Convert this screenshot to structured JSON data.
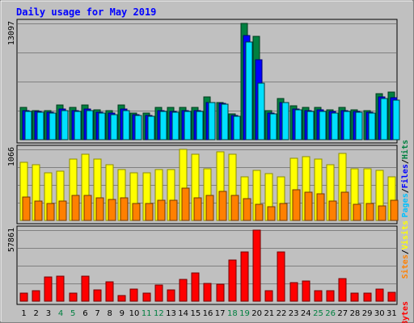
{
  "chart_data": {
    "type": "bar",
    "title": "Daily usage for May 2019",
    "categories": [
      "1",
      "2",
      "3",
      "4",
      "5",
      "6",
      "7",
      "8",
      "9",
      "10",
      "11",
      "12",
      "13",
      "14",
      "15",
      "16",
      "17",
      "18",
      "19",
      "20",
      "21",
      "22",
      "23",
      "24",
      "25",
      "26",
      "27",
      "28",
      "29",
      "30",
      "31"
    ],
    "weekend_days": [
      "4",
      "5",
      "11",
      "12",
      "18",
      "19",
      "25",
      "26"
    ],
    "colors": {
      "hits": "#008040",
      "files": "#0000ff",
      "pages": "#00ffff",
      "visits": "#ffff00",
      "sites": "#ff8000",
      "kbytes": "#ff0000",
      "title": "#0000ff",
      "weekend_label": "#008040",
      "weekday_label": "#000000",
      "background": "#c0c0c0"
    },
    "panels": [
      {
        "id": "hits-files-pages",
        "ymax_label": "13097",
        "ylim": [
          0,
          13097
        ],
        "legend": [
          {
            "text": "Pages",
            "color": "#00c0ff"
          },
          {
            "text": "/",
            "color": "#000000"
          },
          {
            "text": "Files",
            "color": "#0000ff"
          },
          {
            "text": "/",
            "color": "#000000"
          },
          {
            "text": "Hits",
            "color": "#008040"
          }
        ],
        "series": [
          {
            "name": "Hits",
            "color": "#008040",
            "values": [
              3600,
              3300,
              3300,
              3900,
              3600,
              3900,
              3400,
              3300,
              3900,
              3000,
              3000,
              3600,
              3600,
              3600,
              3600,
              4800,
              4200,
              2900,
              13097,
              11600,
              3300,
              4600,
              3800,
              3600,
              3600,
              3400,
              3600,
              3400,
              3300,
              5200,
              5400
            ]
          },
          {
            "name": "Files",
            "color": "#0000ff",
            "values": [
              3300,
              3200,
              3100,
              3500,
              3300,
              3500,
              3100,
              3000,
              3500,
              2800,
              2700,
              3300,
              3200,
              3300,
              3300,
              4200,
              4100,
              2700,
              11700,
              9000,
              3000,
              4200,
              3500,
              3300,
              3400,
              3200,
              3300,
              3200,
              3100,
              4800,
              4700
            ]
          },
          {
            "name": "Pages",
            "color": "#00ffff",
            "values": [
              3200,
              3100,
              3000,
              3300,
              3200,
              3300,
              3000,
              2800,
              3300,
              2700,
              2600,
              3200,
              3100,
              3200,
              3200,
              4200,
              4000,
              2600,
              11000,
              6400,
              2900,
              4200,
              3400,
              3200,
              3200,
              3000,
              3200,
              3100,
              3000,
              4600,
              4500
            ]
          }
        ]
      },
      {
        "id": "visits-sites",
        "ymax_label": "1066",
        "ylim": [
          0,
          1066
        ],
        "legend": [
          {
            "text": "Sites",
            "color": "#ff8000"
          },
          {
            "text": "/",
            "color": "#000000"
          },
          {
            "text": "Visits",
            "color": "#ffff00"
          }
        ],
        "series": [
          {
            "name": "Visits",
            "color": "#ffff00",
            "values": [
              870,
              840,
              720,
              740,
              920,
              990,
              920,
              830,
              760,
              720,
              720,
              760,
              760,
              1066,
              990,
              780,
              1030,
              990,
              660,
              750,
              700,
              660,
              930,
              960,
              920,
              840,
              1000,
              780,
              780,
              750,
              650
            ]
          },
          {
            "name": "Sites",
            "color": "#ff8000",
            "values": [
              350,
              290,
              250,
              290,
              370,
              370,
              340,
              310,
              340,
              260,
              260,
              300,
              300,
              480,
              340,
              380,
              440,
              370,
              330,
              240,
              210,
              250,
              460,
              430,
              400,
              290,
              430,
              240,
              260,
              220,
              300
            ]
          }
        ]
      },
      {
        "id": "kbytes",
        "ymax_label": "57861",
        "ylim": [
          0,
          57861
        ],
        "legend": [
          {
            "text": "KBytes",
            "color": "#ff0000"
          }
        ],
        "series": [
          {
            "name": "KBytes",
            "color": "#ff0000",
            "values": [
              6300,
              8500,
              19500,
              20400,
              6300,
              20400,
              9100,
              16000,
              4300,
              9800,
              6300,
              13000,
              9100,
              17500,
              23300,
              14300,
              13500,
              33600,
              40000,
              57861,
              8500,
              40200,
              14900,
              16200,
              8500,
              8500,
              18300,
              6300,
              6300,
              9800,
              7100
            ]
          }
        ]
      }
    ]
  }
}
